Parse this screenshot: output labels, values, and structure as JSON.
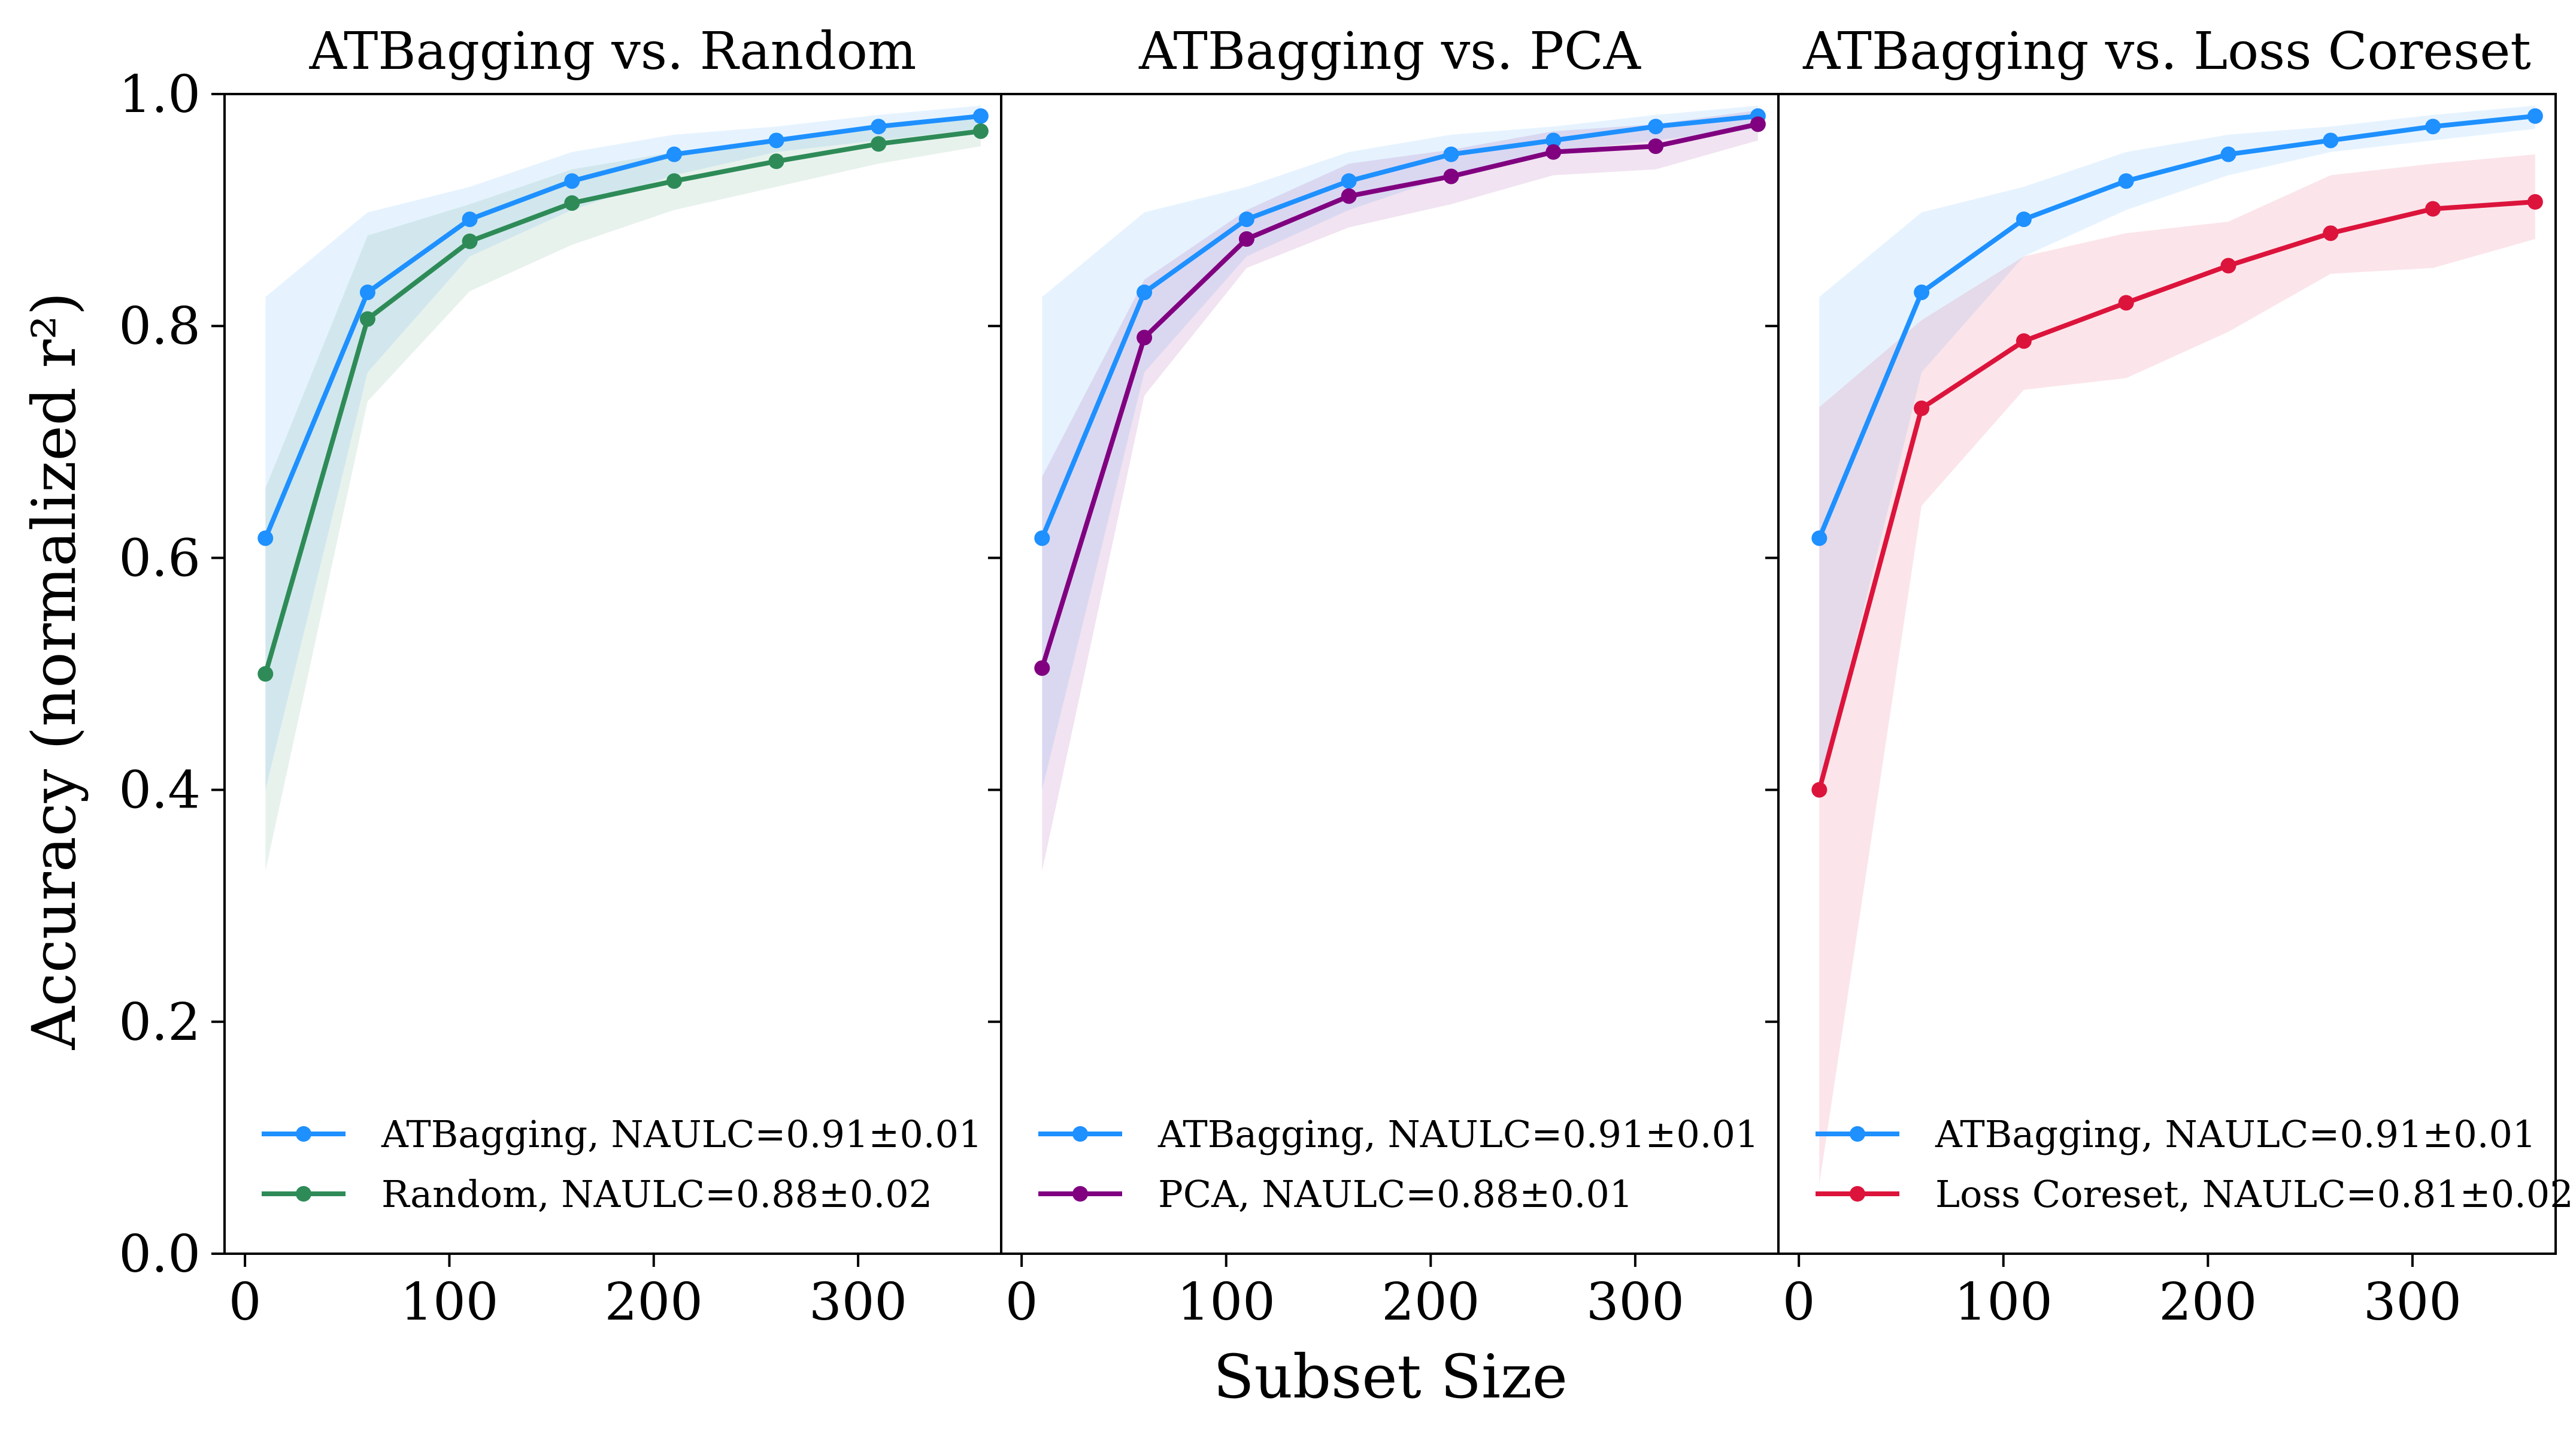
{
  "figure": {
    "xlabel": "Subset Size",
    "ylabel": "Accuracy (normalized r²)"
  },
  "chart_data": [
    {
      "type": "line",
      "title": "ATBagging vs. Random",
      "xlabel": "Subset Size",
      "ylabel": "Accuracy (normalized r²)",
      "xlim": [
        -10,
        370
      ],
      "ylim": [
        0.0,
        1.0
      ],
      "xticks": [
        0,
        100,
        200,
        300
      ],
      "yticks": [
        0.0,
        0.2,
        0.4,
        0.6,
        0.8,
        1.0
      ],
      "legend_position": "lower-left",
      "series": [
        {
          "name": "ATBagging",
          "legend": "ATBagging, NAULC=0.91±0.01",
          "color": "#1e90ff",
          "x": [
            10,
            60,
            110,
            160,
            210,
            260,
            310,
            360
          ],
          "values": [
            0.617,
            0.829,
            0.892,
            0.925,
            0.948,
            0.96,
            0.972,
            0.981
          ],
          "lower": [
            0.4,
            0.76,
            0.86,
            0.9,
            0.93,
            0.95,
            0.96,
            0.97
          ],
          "upper": [
            0.825,
            0.898,
            0.92,
            0.95,
            0.965,
            0.972,
            0.982,
            0.99
          ]
        },
        {
          "name": "Random",
          "legend": "Random, NAULC=0.88±0.02",
          "color": "#2e8b57",
          "x": [
            10,
            60,
            110,
            160,
            210,
            260,
            310,
            360
          ],
          "values": [
            0.5,
            0.806,
            0.873,
            0.906,
            0.925,
            0.942,
            0.957,
            0.968
          ],
          "lower": [
            0.33,
            0.735,
            0.83,
            0.87,
            0.9,
            0.92,
            0.94,
            0.955
          ],
          "upper": [
            0.66,
            0.878,
            0.905,
            0.935,
            0.95,
            0.962,
            0.972,
            0.982
          ]
        }
      ]
    },
    {
      "type": "line",
      "title": "ATBagging vs. PCA",
      "xlabel": "Subset Size",
      "ylabel": "",
      "xlim": [
        -10,
        370
      ],
      "ylim": [
        0.0,
        1.0
      ],
      "xticks": [
        0,
        100,
        200,
        300
      ],
      "yticks": [
        0.0,
        0.2,
        0.4,
        0.6,
        0.8,
        1.0
      ],
      "legend_position": "lower-left",
      "series": [
        {
          "name": "ATBagging",
          "legend": "ATBagging, NAULC=0.91±0.01",
          "color": "#1e90ff",
          "x": [
            10,
            60,
            110,
            160,
            210,
            260,
            310,
            360
          ],
          "values": [
            0.617,
            0.829,
            0.892,
            0.925,
            0.948,
            0.96,
            0.972,
            0.981
          ],
          "lower": [
            0.4,
            0.76,
            0.86,
            0.9,
            0.93,
            0.95,
            0.96,
            0.97
          ],
          "upper": [
            0.825,
            0.898,
            0.92,
            0.95,
            0.965,
            0.972,
            0.982,
            0.99
          ]
        },
        {
          "name": "PCA",
          "legend": "PCA, NAULC=0.88±0.01",
          "color": "#800080",
          "x": [
            10,
            60,
            110,
            160,
            210,
            260,
            310,
            360
          ],
          "values": [
            0.505,
            0.79,
            0.875,
            0.912,
            0.929,
            0.95,
            0.955,
            0.974
          ],
          "lower": [
            0.33,
            0.74,
            0.85,
            0.885,
            0.905,
            0.93,
            0.935,
            0.96
          ],
          "upper": [
            0.67,
            0.84,
            0.9,
            0.94,
            0.952,
            0.968,
            0.974,
            0.986
          ]
        }
      ]
    },
    {
      "type": "line",
      "title": "ATBagging vs. Loss Coreset",
      "xlabel": "Subset Size",
      "ylabel": "",
      "xlim": [
        -10,
        370
      ],
      "ylim": [
        0.0,
        1.0
      ],
      "xticks": [
        0,
        100,
        200,
        300
      ],
      "yticks": [
        0.0,
        0.2,
        0.4,
        0.6,
        0.8,
        1.0
      ],
      "legend_position": "lower-left",
      "series": [
        {
          "name": "ATBagging",
          "legend": "ATBagging, NAULC=0.91±0.01",
          "color": "#1e90ff",
          "x": [
            10,
            60,
            110,
            160,
            210,
            260,
            310,
            360
          ],
          "values": [
            0.617,
            0.829,
            0.892,
            0.925,
            0.948,
            0.96,
            0.972,
            0.981
          ],
          "lower": [
            0.4,
            0.76,
            0.86,
            0.9,
            0.93,
            0.95,
            0.96,
            0.97
          ],
          "upper": [
            0.825,
            0.898,
            0.92,
            0.95,
            0.965,
            0.972,
            0.982,
            0.99
          ]
        },
        {
          "name": "Loss Coreset",
          "legend": "Loss Coreset, NAULC=0.81±0.02",
          "color": "#dc143c",
          "x": [
            10,
            60,
            110,
            160,
            210,
            260,
            310,
            360
          ],
          "values": [
            0.4,
            0.729,
            0.787,
            0.82,
            0.852,
            0.88,
            0.901,
            0.907
          ],
          "lower": [
            0.06,
            0.645,
            0.745,
            0.755,
            0.795,
            0.845,
            0.85,
            0.875
          ],
          "upper": [
            0.73,
            0.805,
            0.86,
            0.88,
            0.89,
            0.93,
            0.94,
            0.948
          ]
        }
      ]
    }
  ]
}
